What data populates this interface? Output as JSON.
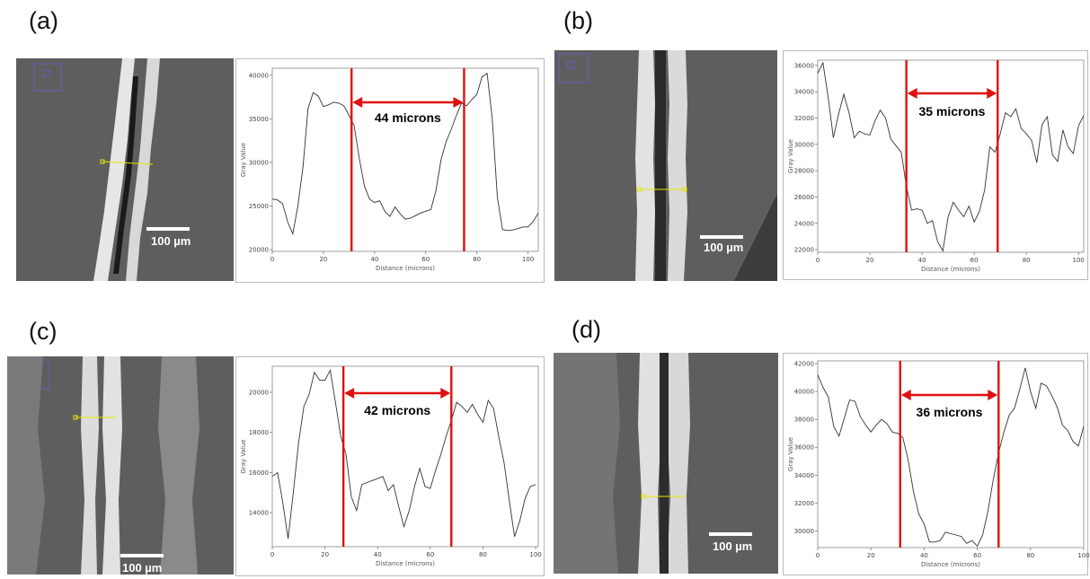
{
  "panels": [
    {
      "label": "(a)",
      "scale_bar": "100 µm",
      "annotation": "44 microns"
    },
    {
      "label": "(b)",
      "scale_bar": "100 µm",
      "annotation": "35 microns"
    },
    {
      "label": "(c)",
      "scale_bar": "100 µm",
      "annotation": "42 microns"
    },
    {
      "label": "(d)",
      "scale_bar": "100 µm",
      "annotation": "36 microns"
    }
  ],
  "colors": {
    "marker": "#e01010",
    "line": "#333333",
    "micrograph": "#5e5e5e",
    "scan_line": "#e8e800"
  },
  "chart_data": [
    {
      "type": "line",
      "xlabel": "Distance (microns)",
      "ylabel": "Gray Value",
      "xlim": [
        0,
        104
      ],
      "ylim": [
        19800,
        40800
      ],
      "xticks": [
        0,
        20,
        40,
        60,
        80,
        100
      ],
      "yticks": [
        20000,
        25000,
        30000,
        35000,
        40000
      ],
      "grid": false,
      "series": [
        {
          "x": [
            0,
            2,
            4,
            6,
            8,
            10,
            12,
            14,
            16,
            18,
            20,
            22,
            24,
            26,
            28,
            30,
            32,
            34,
            36,
            38,
            40,
            42,
            44,
            46,
            48,
            50,
            52,
            54,
            56,
            58,
            60,
            62,
            64,
            66,
            68,
            70,
            72,
            74,
            76,
            78,
            80,
            82,
            84,
            86,
            88,
            90,
            92,
            94,
            96,
            98,
            100,
            102,
            104
          ],
          "y": [
            25800,
            25700,
            25300,
            23200,
            21800,
            25000,
            29500,
            36200,
            38000,
            37600,
            36400,
            36600,
            36900,
            36800,
            36500,
            35400,
            34200,
            30500,
            27300,
            25800,
            25400,
            25600,
            24400,
            23800,
            24900,
            24100,
            23500,
            23600,
            23900,
            24200,
            24400,
            24600,
            26800,
            30300,
            32400,
            33800,
            35400,
            36800,
            36500,
            37200,
            37800,
            39800,
            40200,
            35000,
            26000,
            22300,
            22200,
            22250,
            22400,
            22600,
            22600,
            23200,
            24200
          ]
        }
      ],
      "markers": [
        31,
        75
      ],
      "annotation": "44 microns"
    },
    {
      "type": "line",
      "xlabel": "Distance (microns)",
      "ylabel": "Gray Value",
      "xlim": [
        0,
        102
      ],
      "ylim": [
        21800,
        36400
      ],
      "xticks": [
        0,
        20,
        40,
        60,
        80,
        100
      ],
      "yticks": [
        22000,
        24000,
        26000,
        28000,
        30000,
        32000,
        34000,
        36000
      ],
      "grid": false,
      "series": [
        {
          "x": [
            0,
            2,
            4,
            6,
            8,
            10,
            12,
            14,
            16,
            18,
            20,
            22,
            24,
            26,
            28,
            30,
            32,
            34,
            36,
            38,
            40,
            42,
            44,
            46,
            48,
            50,
            52,
            54,
            56,
            58,
            60,
            62,
            64,
            66,
            68,
            70,
            72,
            74,
            76,
            78,
            80,
            82,
            84,
            86,
            88,
            90,
            92,
            94,
            96,
            98,
            100,
            102
          ],
          "y": [
            35400,
            36200,
            33600,
            30500,
            32300,
            33800,
            32400,
            30500,
            31000,
            30800,
            30700,
            31800,
            32600,
            32000,
            30400,
            29900,
            29400,
            26800,
            25000,
            25100,
            25000,
            24000,
            24200,
            22600,
            21900,
            24500,
            25600,
            25000,
            24500,
            25300,
            24100,
            24900,
            26500,
            29800,
            29400,
            30800,
            32400,
            32100,
            32700,
            31200,
            30800,
            30300,
            28600,
            31500,
            32100,
            29200,
            28700,
            31100,
            29800,
            29300,
            31400,
            32200
          ]
        }
      ],
      "markers": [
        34,
        69
      ],
      "annotation": "35 microns"
    },
    {
      "type": "line",
      "xlabel": "Distance (microns)",
      "ylabel": "Gray Value",
      "xlim": [
        0,
        101
      ],
      "ylim": [
        12300,
        21300
      ],
      "xticks": [
        0,
        20,
        40,
        60,
        80,
        100
      ],
      "yticks": [
        14000,
        16000,
        18000,
        20000
      ],
      "grid": false,
      "series": [
        {
          "x": [
            0,
            2,
            4,
            6,
            8,
            10,
            12,
            14,
            16,
            18,
            20,
            22,
            24,
            26,
            28,
            30,
            32,
            34,
            36,
            38,
            40,
            42,
            44,
            46,
            48,
            50,
            52,
            54,
            56,
            58,
            60,
            62,
            64,
            66,
            68,
            70,
            72,
            74,
            76,
            78,
            80,
            82,
            84,
            86,
            88,
            90,
            92,
            94,
            96,
            98,
            100
          ],
          "y": [
            15800,
            16000,
            14500,
            12700,
            15000,
            17500,
            19300,
            19900,
            21000,
            20600,
            20600,
            21100,
            19500,
            17800,
            16900,
            14800,
            14100,
            15400,
            15500,
            15600,
            15700,
            15800,
            15100,
            15400,
            14300,
            13300,
            14100,
            15300,
            16200,
            15300,
            15200,
            16100,
            16900,
            17800,
            18600,
            19500,
            19300,
            19000,
            19400,
            18900,
            18500,
            19600,
            19200,
            17800,
            16500,
            14600,
            12800,
            13600,
            14700,
            15300,
            15400
          ]
        }
      ],
      "markers": [
        27,
        68
      ],
      "annotation": "42 microns"
    },
    {
      "type": "line",
      "xlabel": "Distance (microns)",
      "ylabel": "Gray Value",
      "xlim": [
        0,
        100
      ],
      "ylim": [
        28800,
        42200
      ],
      "xticks": [
        0,
        20,
        40,
        60,
        80,
        100
      ],
      "yticks": [
        30000,
        32000,
        34000,
        36000,
        38000,
        40000,
        42000
      ],
      "grid": false,
      "series": [
        {
          "x": [
            0,
            2,
            4,
            6,
            8,
            10,
            12,
            14,
            16,
            18,
            20,
            22,
            24,
            26,
            28,
            30,
            32,
            34,
            36,
            38,
            40,
            42,
            44,
            46,
            48,
            50,
            52,
            54,
            56,
            58,
            60,
            62,
            64,
            66,
            68,
            70,
            72,
            74,
            76,
            78,
            80,
            82,
            84,
            86,
            88,
            90,
            92,
            94,
            96,
            98,
            100
          ],
          "y": [
            41200,
            40300,
            39600,
            37500,
            36800,
            38100,
            39400,
            39300,
            38200,
            37600,
            37100,
            37600,
            38000,
            37700,
            37100,
            37000,
            36700,
            35100,
            32800,
            31200,
            30500,
            29200,
            29200,
            29300,
            29900,
            29800,
            29700,
            29600,
            29100,
            29300,
            28900,
            29700,
            31400,
            33700,
            35600,
            37100,
            38300,
            38800,
            40200,
            41700,
            40000,
            38800,
            40600,
            40400,
            39700,
            38900,
            37600,
            37200,
            36400,
            36100,
            37500
          ]
        }
      ],
      "markers": [
        31,
        68
      ],
      "annotation": "36 microns"
    }
  ]
}
